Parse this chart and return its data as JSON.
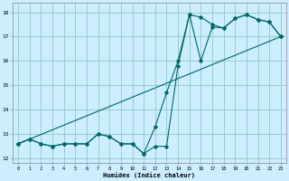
{
  "xlabel": "Humidex (Indice chaleur)",
  "ylabel": "",
  "bg_color": "#cceeff",
  "grid_color": "#99cccc",
  "line_color": "#006666",
  "xlim": [
    -0.5,
    23.5
  ],
  "ylim": [
    11.8,
    18.4
  ],
  "xticks": [
    0,
    1,
    2,
    3,
    4,
    5,
    6,
    7,
    8,
    9,
    10,
    11,
    12,
    13,
    14,
    15,
    16,
    17,
    18,
    19,
    20,
    21,
    22,
    23
  ],
  "yticks": [
    12,
    13,
    14,
    15,
    16,
    17,
    18
  ],
  "line1_x": [
    0,
    1,
    2,
    3,
    4,
    5,
    6,
    7,
    8,
    9,
    10,
    11,
    12,
    13,
    14,
    15,
    16,
    17,
    18,
    19,
    20,
    21,
    22,
    23
  ],
  "line1_y": [
    12.6,
    12.8,
    12.6,
    12.5,
    12.6,
    12.6,
    12.6,
    13.0,
    12.9,
    12.6,
    12.6,
    12.2,
    13.3,
    14.7,
    16.0,
    17.9,
    17.8,
    17.5,
    17.35,
    17.75,
    17.9,
    17.7,
    17.6,
    17.0
  ],
  "line2_x": [
    0,
    1,
    2,
    3,
    4,
    5,
    6,
    7,
    8,
    9,
    10,
    11,
    12,
    13,
    14,
    15,
    16,
    17,
    18,
    19,
    20,
    21,
    22,
    23
  ],
  "line2_y": [
    12.6,
    12.8,
    12.6,
    12.5,
    12.6,
    12.6,
    12.6,
    13.0,
    12.9,
    12.6,
    12.6,
    12.2,
    12.5,
    12.5,
    15.8,
    17.9,
    16.0,
    17.4,
    17.35,
    17.75,
    17.9,
    17.7,
    17.6,
    17.0
  ],
  "line3_x": [
    0,
    23
  ],
  "line3_y": [
    12.6,
    17.0
  ]
}
